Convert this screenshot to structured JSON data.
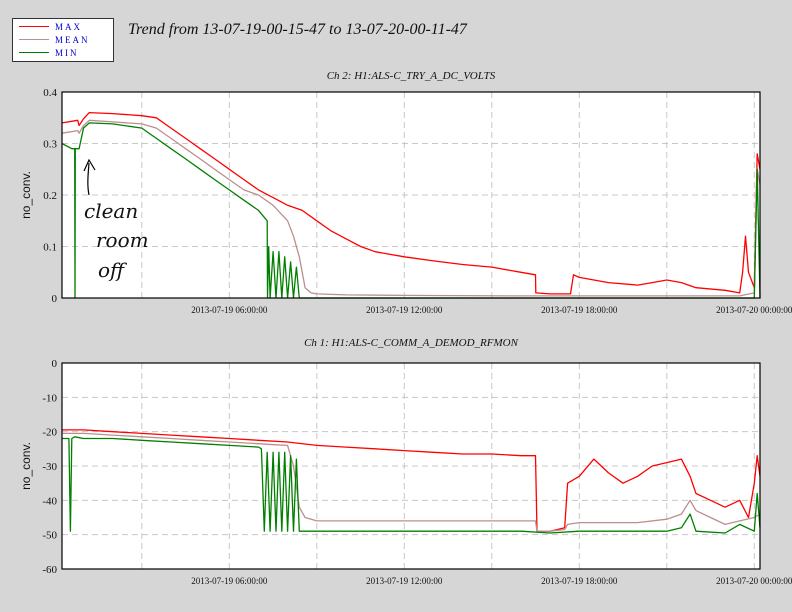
{
  "title": "Trend from 13-07-19-00-15-47 to 13-07-20-00-11-47",
  "legend": [
    {
      "label": "MAX",
      "color": "#ff0000"
    },
    {
      "label": "MEAN",
      "color": "#bc8f8f"
    },
    {
      "label": "MIN",
      "color": "#008000"
    }
  ],
  "annotation": {
    "lines": [
      "clean",
      "room",
      "off"
    ],
    "arrow": "up-arrow"
  },
  "chart_data": [
    {
      "type": "line",
      "title": "Ch 2: H1:ALS-C_TRY_A_DC_VOLTS",
      "ylabel": "no_conv.",
      "ylim": [
        0,
        0.4
      ],
      "yticks": [
        "0.4",
        "0.3",
        "0.2",
        "0.1",
        "0"
      ],
      "xlim": [
        0.263,
        24.196
      ],
      "xticks": [
        {
          "x": 6,
          "label": "2013-07-19 06:00:00"
        },
        {
          "x": 12,
          "label": "2013-07-19 12:00:00"
        },
        {
          "x": 18,
          "label": "2013-07-19 18:00:00"
        },
        {
          "x": 24,
          "label": "2013-07-20 00:00:00"
        }
      ],
      "grid": true,
      "series": [
        {
          "name": "MAX",
          "color": "#ff0000",
          "points": [
            [
              0.263,
              0.34
            ],
            [
              0.8,
              0.345
            ],
            [
              0.85,
              0.335
            ],
            [
              1.0,
              0.348
            ],
            [
              1.2,
              0.36
            ],
            [
              2.0,
              0.358
            ],
            [
              3.0,
              0.354
            ],
            [
              3.5,
              0.35
            ],
            [
              4.0,
              0.33
            ],
            [
              4.5,
              0.31
            ],
            [
              5.0,
              0.29
            ],
            [
              5.5,
              0.27
            ],
            [
              6.0,
              0.25
            ],
            [
              6.5,
              0.23
            ],
            [
              7.0,
              0.21
            ],
            [
              7.5,
              0.195
            ],
            [
              8.0,
              0.18
            ],
            [
              8.5,
              0.17
            ],
            [
              9.0,
              0.15
            ],
            [
              9.5,
              0.13
            ],
            [
              10.0,
              0.115
            ],
            [
              10.5,
              0.1
            ],
            [
              11.0,
              0.09
            ],
            [
              12.0,
              0.08
            ],
            [
              13.0,
              0.072
            ],
            [
              14.0,
              0.065
            ],
            [
              15.0,
              0.06
            ],
            [
              16.0,
              0.05
            ],
            [
              16.5,
              0.045
            ],
            [
              16.51,
              0.01
            ],
            [
              17.0,
              0.008
            ],
            [
              17.7,
              0.008
            ],
            [
              17.8,
              0.045
            ],
            [
              18.0,
              0.04
            ],
            [
              19.0,
              0.03
            ],
            [
              20.0,
              0.025
            ],
            [
              20.5,
              0.03
            ],
            [
              21.0,
              0.035
            ],
            [
              21.5,
              0.03
            ],
            [
              22.0,
              0.02
            ],
            [
              23.0,
              0.015
            ],
            [
              23.5,
              0.01
            ],
            [
              23.6,
              0.05
            ],
            [
              23.7,
              0.12
            ],
            [
              23.8,
              0.05
            ],
            [
              24.0,
              0.02
            ],
            [
              24.1,
              0.28
            ],
            [
              24.196,
              0.25
            ]
          ]
        },
        {
          "name": "MEAN",
          "color": "#bc8f8f",
          "points": [
            [
              0.263,
              0.32
            ],
            [
              0.8,
              0.325
            ],
            [
              0.85,
              0.32
            ],
            [
              1.0,
              0.335
            ],
            [
              1.2,
              0.345
            ],
            [
              2.0,
              0.342
            ],
            [
              3.0,
              0.338
            ],
            [
              3.5,
              0.33
            ],
            [
              4.0,
              0.31
            ],
            [
              4.5,
              0.29
            ],
            [
              5.0,
              0.27
            ],
            [
              5.5,
              0.25
            ],
            [
              6.0,
              0.23
            ],
            [
              6.5,
              0.21
            ],
            [
              7.0,
              0.2
            ],
            [
              7.5,
              0.18
            ],
            [
              8.0,
              0.15
            ],
            [
              8.2,
              0.12
            ],
            [
              8.4,
              0.08
            ],
            [
              8.6,
              0.02
            ],
            [
              8.8,
              0.01
            ],
            [
              9.0,
              0.008
            ],
            [
              10.0,
              0.006
            ],
            [
              12.0,
              0.005
            ],
            [
              16.0,
              0.004
            ],
            [
              18.0,
              0.004
            ],
            [
              23.5,
              0.004
            ],
            [
              24.0,
              0.01
            ],
            [
              24.1,
              0.25
            ],
            [
              24.196,
              0.22
            ]
          ]
        },
        {
          "name": "MIN",
          "color": "#008000",
          "points": [
            [
              0.263,
              0.3
            ],
            [
              0.6,
              0.29
            ],
            [
              0.7,
              0.29
            ],
            [
              0.71,
              0.0
            ],
            [
              0.72,
              0.29
            ],
            [
              0.8,
              0.29
            ],
            [
              0.85,
              0.29
            ],
            [
              1.0,
              0.33
            ],
            [
              1.2,
              0.34
            ],
            [
              2.0,
              0.338
            ],
            [
              3.0,
              0.33
            ],
            [
              3.5,
              0.31
            ],
            [
              4.0,
              0.29
            ],
            [
              4.5,
              0.27
            ],
            [
              5.0,
              0.25
            ],
            [
              5.5,
              0.23
            ],
            [
              6.0,
              0.21
            ],
            [
              6.5,
              0.19
            ],
            [
              7.0,
              0.17
            ],
            [
              7.3,
              0.15
            ],
            [
              7.31,
              0.0
            ],
            [
              7.35,
              0.1
            ],
            [
              7.4,
              0.0
            ],
            [
              7.5,
              0.09
            ],
            [
              7.6,
              0.0
            ],
            [
              7.7,
              0.09
            ],
            [
              7.8,
              0.0
            ],
            [
              7.9,
              0.08
            ],
            [
              8.0,
              0.0
            ],
            [
              8.1,
              0.07
            ],
            [
              8.2,
              0.0
            ],
            [
              8.3,
              0.06
            ],
            [
              8.4,
              0.0
            ],
            [
              12.0,
              0.0
            ],
            [
              18.0,
              0.0
            ],
            [
              23.0,
              0.0
            ],
            [
              24.0,
              0.0
            ],
            [
              24.1,
              0.25
            ],
            [
              24.196,
              0.0
            ]
          ]
        }
      ]
    },
    {
      "type": "line",
      "title": "Ch 1: H1:ALS-C_COMM_A_DEMOD_RFMON",
      "ylabel": "no_conv.",
      "ylim": [
        -60,
        0
      ],
      "yticks": [
        "0",
        "-10",
        "-20",
        "-30",
        "-40",
        "-50",
        "-60"
      ],
      "xlim": [
        0.263,
        24.196
      ],
      "xticks": [
        {
          "x": 6,
          "label": "2013-07-19 06:00:00"
        },
        {
          "x": 12,
          "label": "2013-07-19 12:00:00"
        },
        {
          "x": 18,
          "label": "2013-07-19 18:00:00"
        },
        {
          "x": 24,
          "label": "2013-07-20 00:00:00"
        }
      ],
      "grid": true,
      "series": [
        {
          "name": "MAX",
          "color": "#ff0000",
          "points": [
            [
              0.263,
              -19.5
            ],
            [
              1.0,
              -19.5
            ],
            [
              2.0,
              -20.0
            ],
            [
              3.0,
              -20.5
            ],
            [
              4.0,
              -21.0
            ],
            [
              5.0,
              -21.5
            ],
            [
              6.0,
              -22.0
            ],
            [
              7.0,
              -22.5
            ],
            [
              8.0,
              -23.0
            ],
            [
              9.0,
              -24.0
            ],
            [
              10.0,
              -24.5
            ],
            [
              11.0,
              -25.0
            ],
            [
              12.0,
              -25.5
            ],
            [
              13.0,
              -26.0
            ],
            [
              14.0,
              -26.5
            ],
            [
              15.0,
              -26.5
            ],
            [
              16.0,
              -27.0
            ],
            [
              16.5,
              -27.0
            ],
            [
              16.55,
              -49.0
            ],
            [
              17.0,
              -49.0
            ],
            [
              17.5,
              -48.0
            ],
            [
              17.6,
              -35.0
            ],
            [
              18.0,
              -33.0
            ],
            [
              18.5,
              -28.0
            ],
            [
              19.0,
              -32.0
            ],
            [
              19.5,
              -35.0
            ],
            [
              20.0,
              -33.0
            ],
            [
              20.5,
              -30.0
            ],
            [
              21.0,
              -29.0
            ],
            [
              21.5,
              -28.0
            ],
            [
              21.8,
              -33.0
            ],
            [
              22.0,
              -38.0
            ],
            [
              22.5,
              -40.0
            ],
            [
              23.0,
              -42.0
            ],
            [
              23.5,
              -40.0
            ],
            [
              23.8,
              -45.0
            ],
            [
              24.0,
              -35.0
            ],
            [
              24.1,
              -27.0
            ],
            [
              24.196,
              -33.0
            ]
          ]
        },
        {
          "name": "MEAN",
          "color": "#bc8f8f",
          "points": [
            [
              0.263,
              -20.5
            ],
            [
              1.0,
              -20.5
            ],
            [
              2.0,
              -21.0
            ],
            [
              3.0,
              -21.5
            ],
            [
              4.0,
              -22.0
            ],
            [
              5.0,
              -22.5
            ],
            [
              6.0,
              -23.0
            ],
            [
              7.0,
              -23.5
            ],
            [
              7.5,
              -23.8
            ],
            [
              8.0,
              -24.0
            ],
            [
              8.2,
              -30.0
            ],
            [
              8.4,
              -42.0
            ],
            [
              8.6,
              -45.0
            ],
            [
              9.0,
              -46.0
            ],
            [
              10.0,
              -46.0
            ],
            [
              12.0,
              -46.0
            ],
            [
              14.0,
              -46.0
            ],
            [
              16.0,
              -46.0
            ],
            [
              16.5,
              -46.0
            ],
            [
              16.55,
              -49.0
            ],
            [
              17.0,
              -49.0
            ],
            [
              17.5,
              -48.5
            ],
            [
              17.6,
              -47.0
            ],
            [
              18.0,
              -46.5
            ],
            [
              20.0,
              -46.5
            ],
            [
              21.0,
              -45.5
            ],
            [
              21.5,
              -44.0
            ],
            [
              21.8,
              -40.0
            ],
            [
              22.0,
              -43.0
            ],
            [
              22.5,
              -45.0
            ],
            [
              23.0,
              -47.0
            ],
            [
              23.5,
              -46.0
            ],
            [
              24.0,
              -45.0
            ],
            [
              24.196,
              -44.0
            ]
          ]
        },
        {
          "name": "MIN",
          "color": "#008000",
          "points": [
            [
              0.263,
              -22.0
            ],
            [
              0.5,
              -22.0
            ],
            [
              0.55,
              -49.0
            ],
            [
              0.6,
              -22.0
            ],
            [
              0.7,
              -21.5
            ],
            [
              1.0,
              -22.0
            ],
            [
              2.0,
              -22.0
            ],
            [
              3.0,
              -22.5
            ],
            [
              4.0,
              -23.0
            ],
            [
              5.0,
              -23.5
            ],
            [
              6.0,
              -24.0
            ],
            [
              7.0,
              -24.5
            ],
            [
              7.1,
              -25.0
            ],
            [
              7.2,
              -49.0
            ],
            [
              7.3,
              -26.0
            ],
            [
              7.4,
              -49.0
            ],
            [
              7.5,
              -26.0
            ],
            [
              7.6,
              -49.0
            ],
            [
              7.7,
              -26.0
            ],
            [
              7.8,
              -49.0
            ],
            [
              7.9,
              -26.0
            ],
            [
              8.0,
              -49.0
            ],
            [
              8.1,
              -27.0
            ],
            [
              8.2,
              -49.0
            ],
            [
              8.3,
              -28.0
            ],
            [
              8.4,
              -49.0
            ],
            [
              9.0,
              -49.0
            ],
            [
              12.0,
              -49.0
            ],
            [
              16.0,
              -49.0
            ],
            [
              17.0,
              -49.5
            ],
            [
              18.0,
              -49.0
            ],
            [
              20.0,
              -49.0
            ],
            [
              21.0,
              -49.0
            ],
            [
              21.5,
              -48.0
            ],
            [
              21.8,
              -44.0
            ],
            [
              22.0,
              -49.0
            ],
            [
              23.0,
              -49.5
            ],
            [
              23.5,
              -47.0
            ],
            [
              24.0,
              -49.0
            ],
            [
              24.1,
              -38.0
            ],
            [
              24.196,
              -48.0
            ]
          ]
        }
      ]
    }
  ]
}
